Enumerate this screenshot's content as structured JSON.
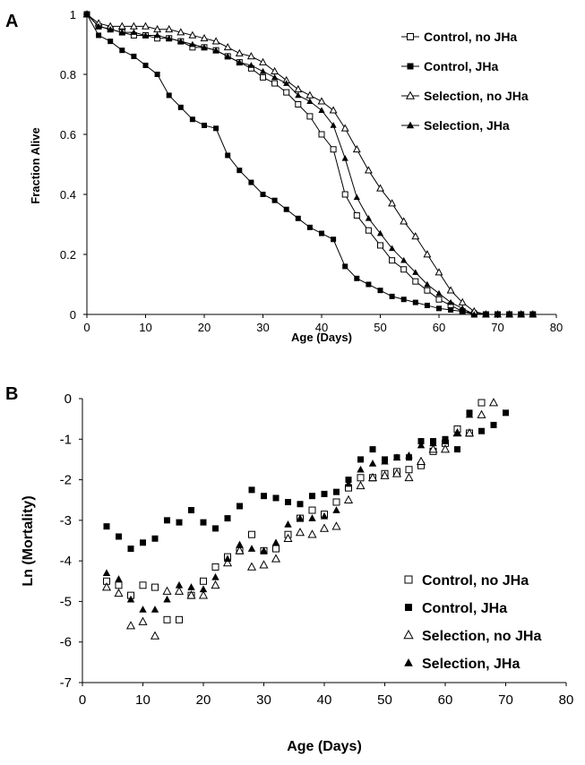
{
  "panel_a_letter": "A",
  "panel_b_letter": "B",
  "chart_data": [
    {
      "type": "line",
      "panel": "A",
      "xlabel": "Age (Days)",
      "ylabel": "Fraction Alive",
      "xlim": [
        0,
        80
      ],
      "ylim": [
        0,
        1
      ],
      "x_ticks": [
        "0",
        "10",
        "20",
        "30",
        "40",
        "50",
        "60",
        "70",
        "80"
      ],
      "y_ticks": [
        "0",
        "0.2",
        "0.4",
        "0.6",
        "0.8",
        "1"
      ],
      "legend_position": "top-right",
      "series": [
        {
          "name": "Control, no JHa",
          "marker": "open-square",
          "x": [
            0,
            2,
            4,
            6,
            8,
            10,
            12,
            14,
            16,
            18,
            20,
            22,
            24,
            26,
            28,
            30,
            32,
            34,
            36,
            38,
            40,
            42,
            44,
            46,
            48,
            50,
            52,
            54,
            56,
            58,
            60,
            62,
            64,
            66,
            68,
            70,
            72,
            74,
            76
          ],
          "y": [
            1.0,
            0.96,
            0.95,
            0.94,
            0.93,
            0.93,
            0.92,
            0.92,
            0.91,
            0.89,
            0.89,
            0.88,
            0.86,
            0.84,
            0.82,
            0.79,
            0.77,
            0.74,
            0.7,
            0.66,
            0.6,
            0.55,
            0.4,
            0.33,
            0.28,
            0.23,
            0.18,
            0.15,
            0.11,
            0.08,
            0.05,
            0.03,
            0.01,
            0.0,
            0.0,
            0.0,
            0.0,
            0.0,
            0.0
          ]
        },
        {
          "name": "Control, JHa",
          "marker": "filled-square",
          "x": [
            0,
            2,
            4,
            6,
            8,
            10,
            12,
            14,
            16,
            18,
            20,
            22,
            24,
            26,
            28,
            30,
            32,
            34,
            36,
            38,
            40,
            42,
            44,
            46,
            48,
            50,
            52,
            54,
            56,
            58,
            60,
            62,
            64,
            66,
            68,
            70,
            72,
            74,
            76
          ],
          "y": [
            1.0,
            0.93,
            0.91,
            0.88,
            0.86,
            0.83,
            0.8,
            0.73,
            0.69,
            0.65,
            0.63,
            0.62,
            0.53,
            0.48,
            0.44,
            0.4,
            0.38,
            0.35,
            0.32,
            0.29,
            0.27,
            0.25,
            0.16,
            0.12,
            0.1,
            0.08,
            0.06,
            0.05,
            0.04,
            0.03,
            0.02,
            0.015,
            0.01,
            0.005,
            0.0,
            0.0,
            0.0,
            0.0,
            0.0
          ]
        },
        {
          "name": "Selection, no JHa",
          "marker": "open-triangle",
          "x": [
            0,
            2,
            4,
            6,
            8,
            10,
            12,
            14,
            16,
            18,
            20,
            22,
            24,
            26,
            28,
            30,
            32,
            34,
            36,
            38,
            40,
            42,
            44,
            46,
            48,
            50,
            52,
            54,
            56,
            58,
            60,
            62,
            64,
            66,
            68,
            70,
            72,
            74,
            76
          ],
          "y": [
            1.0,
            0.97,
            0.96,
            0.96,
            0.96,
            0.96,
            0.95,
            0.95,
            0.94,
            0.93,
            0.92,
            0.91,
            0.89,
            0.87,
            0.86,
            0.84,
            0.81,
            0.78,
            0.75,
            0.73,
            0.71,
            0.68,
            0.62,
            0.55,
            0.48,
            0.42,
            0.37,
            0.31,
            0.26,
            0.2,
            0.14,
            0.08,
            0.04,
            0.01,
            0.0,
            0.0,
            0.0,
            0.0,
            0.0
          ]
        },
        {
          "name": "Selection, JHa",
          "marker": "filled-triangle",
          "x": [
            0,
            2,
            4,
            6,
            8,
            10,
            12,
            14,
            16,
            18,
            20,
            22,
            24,
            26,
            28,
            30,
            32,
            34,
            36,
            38,
            40,
            42,
            44,
            46,
            48,
            50,
            52,
            54,
            56,
            58,
            60,
            62,
            64,
            66,
            68,
            70,
            72,
            74,
            76
          ],
          "y": [
            1.0,
            0.96,
            0.95,
            0.94,
            0.94,
            0.93,
            0.93,
            0.92,
            0.91,
            0.9,
            0.89,
            0.88,
            0.86,
            0.84,
            0.83,
            0.81,
            0.79,
            0.77,
            0.73,
            0.71,
            0.68,
            0.63,
            0.52,
            0.39,
            0.32,
            0.27,
            0.22,
            0.18,
            0.14,
            0.1,
            0.07,
            0.04,
            0.02,
            0.0,
            0.0,
            0.0,
            0.0,
            0.0,
            0.0
          ]
        }
      ]
    },
    {
      "type": "scatter",
      "panel": "B",
      "xlabel": "Age (Days)",
      "ylabel": "Ln (Mortality)",
      "xlim": [
        0,
        80
      ],
      "ylim": [
        -7,
        0
      ],
      "x_ticks": [
        "0",
        "10",
        "20",
        "30",
        "40",
        "50",
        "60",
        "70",
        "80"
      ],
      "y_ticks": [
        "0",
        "-1",
        "-2",
        "-3",
        "-4",
        "-5",
        "-6",
        "-7"
      ],
      "legend_position": "bottom-right",
      "series": [
        {
          "name": "Control, no JHa",
          "marker": "open-square",
          "x": [
            4,
            6,
            8,
            10,
            12,
            14,
            16,
            18,
            20,
            22,
            24,
            26,
            28,
            30,
            32,
            34,
            36,
            38,
            40,
            42,
            44,
            46,
            48,
            50,
            52,
            54,
            56,
            58,
            60,
            62,
            64,
            66
          ],
          "y": [
            -4.5,
            -4.6,
            -4.85,
            -4.6,
            -4.65,
            -5.45,
            -5.45,
            -4.85,
            -4.5,
            -4.15,
            -3.9,
            -3.75,
            -3.35,
            -3.75,
            -3.7,
            -3.35,
            -2.95,
            -2.75,
            -2.85,
            -2.55,
            -2.2,
            -1.95,
            -1.95,
            -1.85,
            -1.8,
            -1.75,
            -1.65,
            -1.3,
            -1.1,
            -0.75,
            -0.85,
            -0.1
          ]
        },
        {
          "name": "Control, JHa",
          "marker": "filled-square",
          "x": [
            4,
            6,
            8,
            10,
            12,
            14,
            16,
            18,
            20,
            22,
            24,
            26,
            28,
            30,
            32,
            34,
            36,
            38,
            40,
            42,
            44,
            46,
            48,
            50,
            52,
            54,
            56,
            58,
            60,
            62,
            64,
            66,
            68,
            70
          ],
          "y": [
            -3.15,
            -3.4,
            -3.7,
            -3.55,
            -3.45,
            -3.0,
            -3.05,
            -2.75,
            -3.05,
            -3.2,
            -2.95,
            -2.65,
            -2.25,
            -2.4,
            -2.45,
            -2.55,
            -2.6,
            -2.4,
            -2.35,
            -2.3,
            -2.0,
            -1.5,
            -1.25,
            -1.5,
            -1.45,
            -1.45,
            -1.05,
            -1.05,
            -1.0,
            -1.25,
            -0.35,
            -0.8,
            -0.65,
            -0.35
          ]
        },
        {
          "name": "Selection, no JHa",
          "marker": "open-triangle",
          "x": [
            4,
            6,
            8,
            10,
            12,
            14,
            16,
            18,
            20,
            22,
            24,
            26,
            28,
            30,
            32,
            34,
            36,
            38,
            40,
            42,
            44,
            46,
            48,
            50,
            52,
            54,
            56,
            58,
            60,
            62,
            64,
            66,
            68
          ],
          "y": [
            -4.65,
            -4.8,
            -5.6,
            -5.5,
            -5.85,
            -4.75,
            -4.75,
            -4.85,
            -4.85,
            -4.6,
            -4.05,
            -3.75,
            -4.15,
            -4.1,
            -3.95,
            -3.45,
            -3.3,
            -3.35,
            -3.2,
            -3.15,
            -2.5,
            -2.15,
            -1.95,
            -1.9,
            -1.85,
            -1.95,
            -1.55,
            -1.25,
            -1.25,
            -0.85,
            -0.85,
            -0.4,
            -0.1
          ]
        },
        {
          "name": "Selection, JHa",
          "marker": "filled-triangle",
          "x": [
            4,
            6,
            8,
            10,
            12,
            14,
            16,
            18,
            20,
            22,
            24,
            26,
            28,
            30,
            32,
            34,
            36,
            38,
            40,
            42,
            44,
            46,
            48,
            50,
            52,
            54,
            56,
            58,
            60,
            62,
            64
          ],
          "y": [
            -4.3,
            -4.45,
            -4.95,
            -5.2,
            -5.2,
            -4.95,
            -4.6,
            -4.65,
            -4.7,
            -4.4,
            -3.95,
            -3.6,
            -3.7,
            -3.75,
            -3.55,
            -3.1,
            -2.95,
            -2.95,
            -2.9,
            -2.75,
            -2.1,
            -1.75,
            -1.6,
            -1.55,
            -1.45,
            -1.4,
            -1.15,
            -1.1,
            -1.05,
            -0.85,
            -0.4
          ]
        }
      ]
    }
  ]
}
